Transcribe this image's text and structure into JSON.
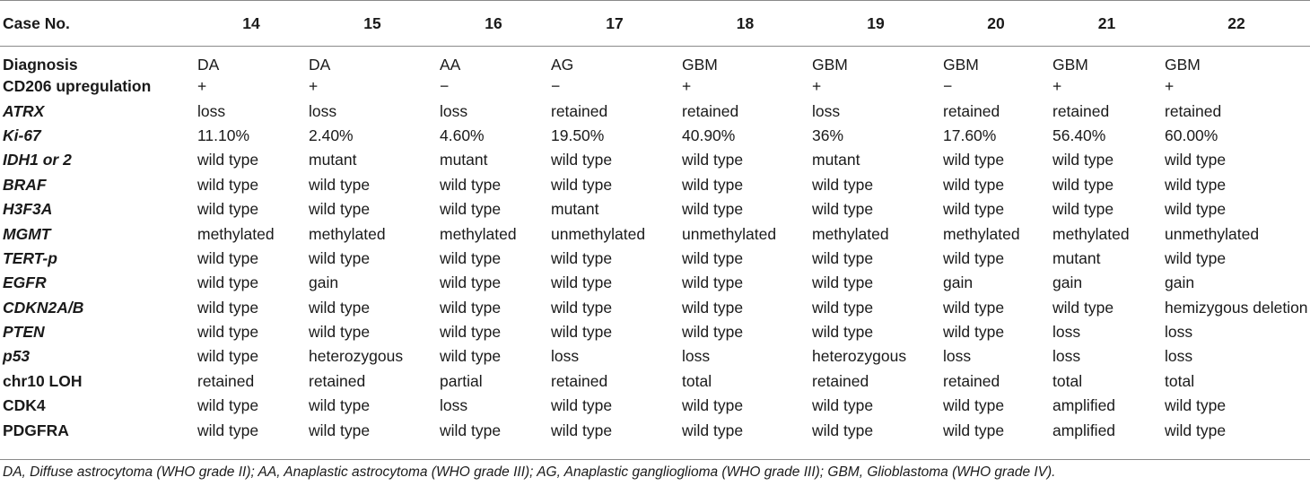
{
  "header": [
    "Case No.",
    "14",
    "15",
    "16",
    "17",
    "18",
    "19",
    "20",
    "21",
    "22"
  ],
  "rows": [
    {
      "label": "Diagnosis",
      "italic": false,
      "values": [
        "DA",
        "DA",
        "AA",
        "AG",
        "GBM",
        "GBM",
        "GBM",
        "GBM",
        "GBM"
      ]
    },
    {
      "label": "CD206 upregulation",
      "italic": false,
      "values": [
        "+",
        "+",
        "−",
        "−",
        "+",
        "+",
        "−",
        "+",
        "+"
      ]
    },
    {
      "label": "ATRX",
      "italic": true,
      "values": [
        "loss",
        "loss",
        "loss",
        "retained",
        "retained",
        "loss",
        "retained",
        "retained",
        "retained"
      ]
    },
    {
      "label": "Ki-67",
      "italic": true,
      "values": [
        "11.10%",
        "2.40%",
        "4.60%",
        "19.50%",
        "40.90%",
        "36%",
        "17.60%",
        "56.40%",
        "60.00%"
      ]
    },
    {
      "label": "IDH1 or 2",
      "italic": true,
      "values": [
        "wild type",
        "mutant",
        "mutant",
        "wild type",
        "wild type",
        "mutant",
        "wild type",
        "wild type",
        "wild type"
      ]
    },
    {
      "label": "BRAF",
      "italic": true,
      "values": [
        "wild type",
        "wild type",
        "wild type",
        "wild type",
        "wild type",
        "wild type",
        "wild type",
        "wild type",
        "wild type"
      ]
    },
    {
      "label": "H3F3A",
      "italic": true,
      "values": [
        "wild type",
        "wild type",
        "wild type",
        "mutant",
        "wild type",
        "wild type",
        "wild type",
        "wild type",
        "wild type"
      ]
    },
    {
      "label": "MGMT",
      "italic": true,
      "values": [
        "methylated",
        "methylated",
        "methylated",
        "unmethylated",
        "unmethylated",
        "methylated",
        "methylated",
        "methylated",
        "unmethylated"
      ]
    },
    {
      "label": "TERT-p",
      "italic": true,
      "values": [
        "wild type",
        "wild type",
        "wild type",
        "wild type",
        "wild type",
        "wild type",
        "wild type",
        "mutant",
        "wild type"
      ]
    },
    {
      "label": "EGFR",
      "italic": true,
      "values": [
        "wild type",
        "gain",
        "wild type",
        "wild type",
        "wild type",
        "wild type",
        "gain",
        "gain",
        "gain"
      ]
    },
    {
      "label": "CDKN2A/B",
      "italic": true,
      "values": [
        "wild type",
        "wild type",
        "wild type",
        "wild type",
        "wild type",
        "wild type",
        "wild type",
        "wild type",
        "hemizygous deletion"
      ]
    },
    {
      "label": "PTEN",
      "italic": true,
      "values": [
        "wild type",
        "wild type",
        "wild type",
        "wild type",
        "wild type",
        "wild type",
        "wild type",
        "loss",
        "loss"
      ]
    },
    {
      "label": "p53",
      "italic": true,
      "values": [
        "wild type",
        "heterozygous",
        "wild type",
        "loss",
        "loss",
        "heterozygous",
        "loss",
        "loss",
        "loss"
      ]
    },
    {
      "label": "chr10 LOH",
      "italic": false,
      "values": [
        "retained",
        "retained",
        "partial",
        "retained",
        "total",
        "retained",
        "retained",
        "total",
        "total"
      ]
    },
    {
      "label": "CDK4",
      "italic": false,
      "values": [
        "wild type",
        "wild type",
        "loss",
        "wild type",
        "wild type",
        "wild type",
        "wild type",
        "amplified",
        "wild type"
      ]
    },
    {
      "label": "PDGFRA",
      "italic": false,
      "values": [
        "wild type",
        "wild type",
        "wild type",
        "wild type",
        "wild type",
        "wild type",
        "wild type",
        "amplified",
        "wild type"
      ]
    }
  ],
  "footnote": "DA, Diffuse astrocytoma (WHO grade II); AA, Anaplastic astrocytoma (WHO grade III); AG, Anaplastic ganglioglioma (WHO grade III); GBM, Glioblastoma (WHO grade IV)."
}
